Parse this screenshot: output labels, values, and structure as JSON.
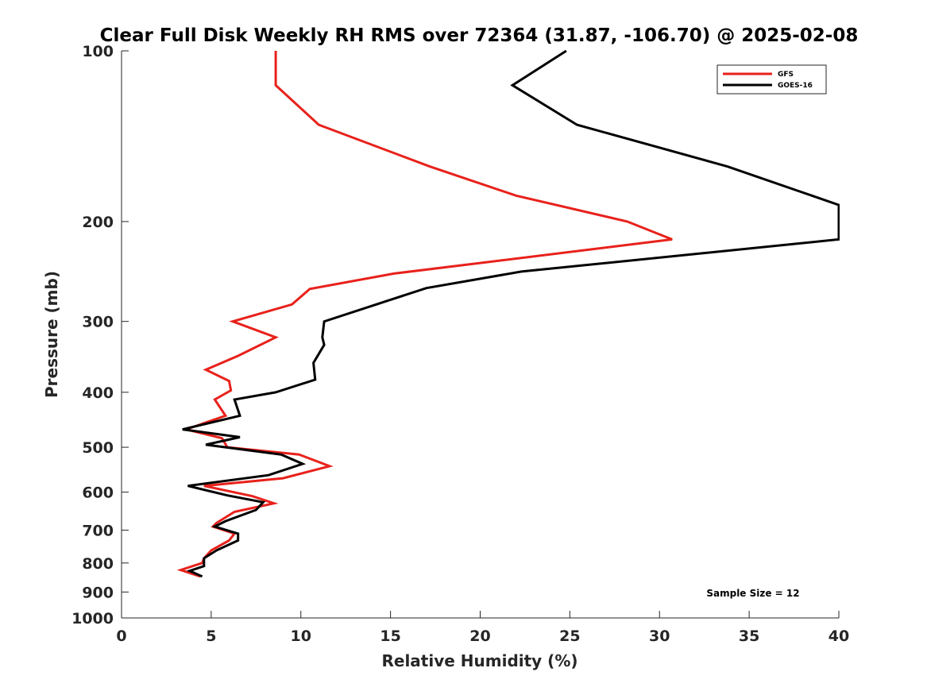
{
  "chart_data": {
    "type": "line",
    "title": "Clear Full Disk Weekly RH RMS over 72364 (31.87, -106.70) @ 2025-02-08",
    "xlabel": "Relative Humidity (%)",
    "ylabel": "Pressure (mb)",
    "xlim": [
      0,
      40
    ],
    "ylim": [
      100,
      1000
    ],
    "y_scale": "log",
    "y_reversed": true,
    "x_ticks": [
      "0",
      "5",
      "10",
      "15",
      "20",
      "25",
      "30",
      "35",
      "40"
    ],
    "y_ticks": [
      "100",
      "200",
      "300",
      "400",
      "500",
      "600",
      "700",
      "800",
      "900",
      "1000"
    ],
    "grid": false,
    "legend_position": "top-right",
    "annotation": "Sample Size = 12",
    "series": [
      {
        "name": "GFS",
        "color": "#e8211b",
        "points": [
          [
            8.6,
            100
          ],
          [
            8.6,
            115
          ],
          [
            11.0,
            135
          ],
          [
            17.2,
            160
          ],
          [
            22.0,
            180
          ],
          [
            28.2,
            200
          ],
          [
            30.7,
            215
          ],
          [
            15.2,
            247
          ],
          [
            10.5,
            263
          ],
          [
            9.5,
            280
          ],
          [
            6.2,
            300
          ],
          [
            8.6,
            320
          ],
          [
            6.5,
            345
          ],
          [
            4.7,
            365
          ],
          [
            6.0,
            382
          ],
          [
            6.1,
            397
          ],
          [
            5.2,
            412
          ],
          [
            5.8,
            440
          ],
          [
            3.6,
            465
          ],
          [
            5.6,
            482
          ],
          [
            5.9,
            500
          ],
          [
            9.9,
            515
          ],
          [
            11.6,
            540
          ],
          [
            9.0,
            567
          ],
          [
            4.6,
            585
          ],
          [
            7.3,
            610
          ],
          [
            8.5,
            628
          ],
          [
            6.3,
            650
          ],
          [
            5.3,
            680
          ],
          [
            5.1,
            690
          ],
          [
            6.3,
            710
          ],
          [
            6.0,
            730
          ],
          [
            5.0,
            760
          ],
          [
            4.6,
            785
          ],
          [
            4.5,
            800
          ],
          [
            3.3,
            823
          ],
          [
            4.4,
            845
          ]
        ]
      },
      {
        "name": "GOES-16",
        "color": "#000000",
        "points": [
          [
            24.8,
            100
          ],
          [
            21.8,
            115
          ],
          [
            25.4,
            135
          ],
          [
            33.8,
            160
          ],
          [
            38.5,
            180
          ],
          [
            40.0,
            187
          ],
          [
            40.0,
            215
          ],
          [
            22.3,
            245
          ],
          [
            17.0,
            262
          ],
          [
            14.2,
            280
          ],
          [
            11.3,
            300
          ],
          [
            11.2,
            320
          ],
          [
            11.3,
            330
          ],
          [
            10.7,
            355
          ],
          [
            10.8,
            380
          ],
          [
            8.6,
            400
          ],
          [
            6.3,
            412
          ],
          [
            6.6,
            440
          ],
          [
            3.4,
            465
          ],
          [
            6.6,
            480
          ],
          [
            4.7,
            495
          ],
          [
            8.9,
            515
          ],
          [
            10.1,
            535
          ],
          [
            8.2,
            560
          ],
          [
            3.7,
            585
          ],
          [
            5.9,
            608
          ],
          [
            7.9,
            625
          ],
          [
            7.5,
            645
          ],
          [
            5.8,
            675
          ],
          [
            5.2,
            690
          ],
          [
            6.5,
            710
          ],
          [
            6.5,
            730
          ],
          [
            5.3,
            760
          ],
          [
            4.6,
            785
          ],
          [
            4.6,
            810
          ],
          [
            3.8,
            826
          ],
          [
            4.5,
            845
          ]
        ]
      }
    ]
  }
}
